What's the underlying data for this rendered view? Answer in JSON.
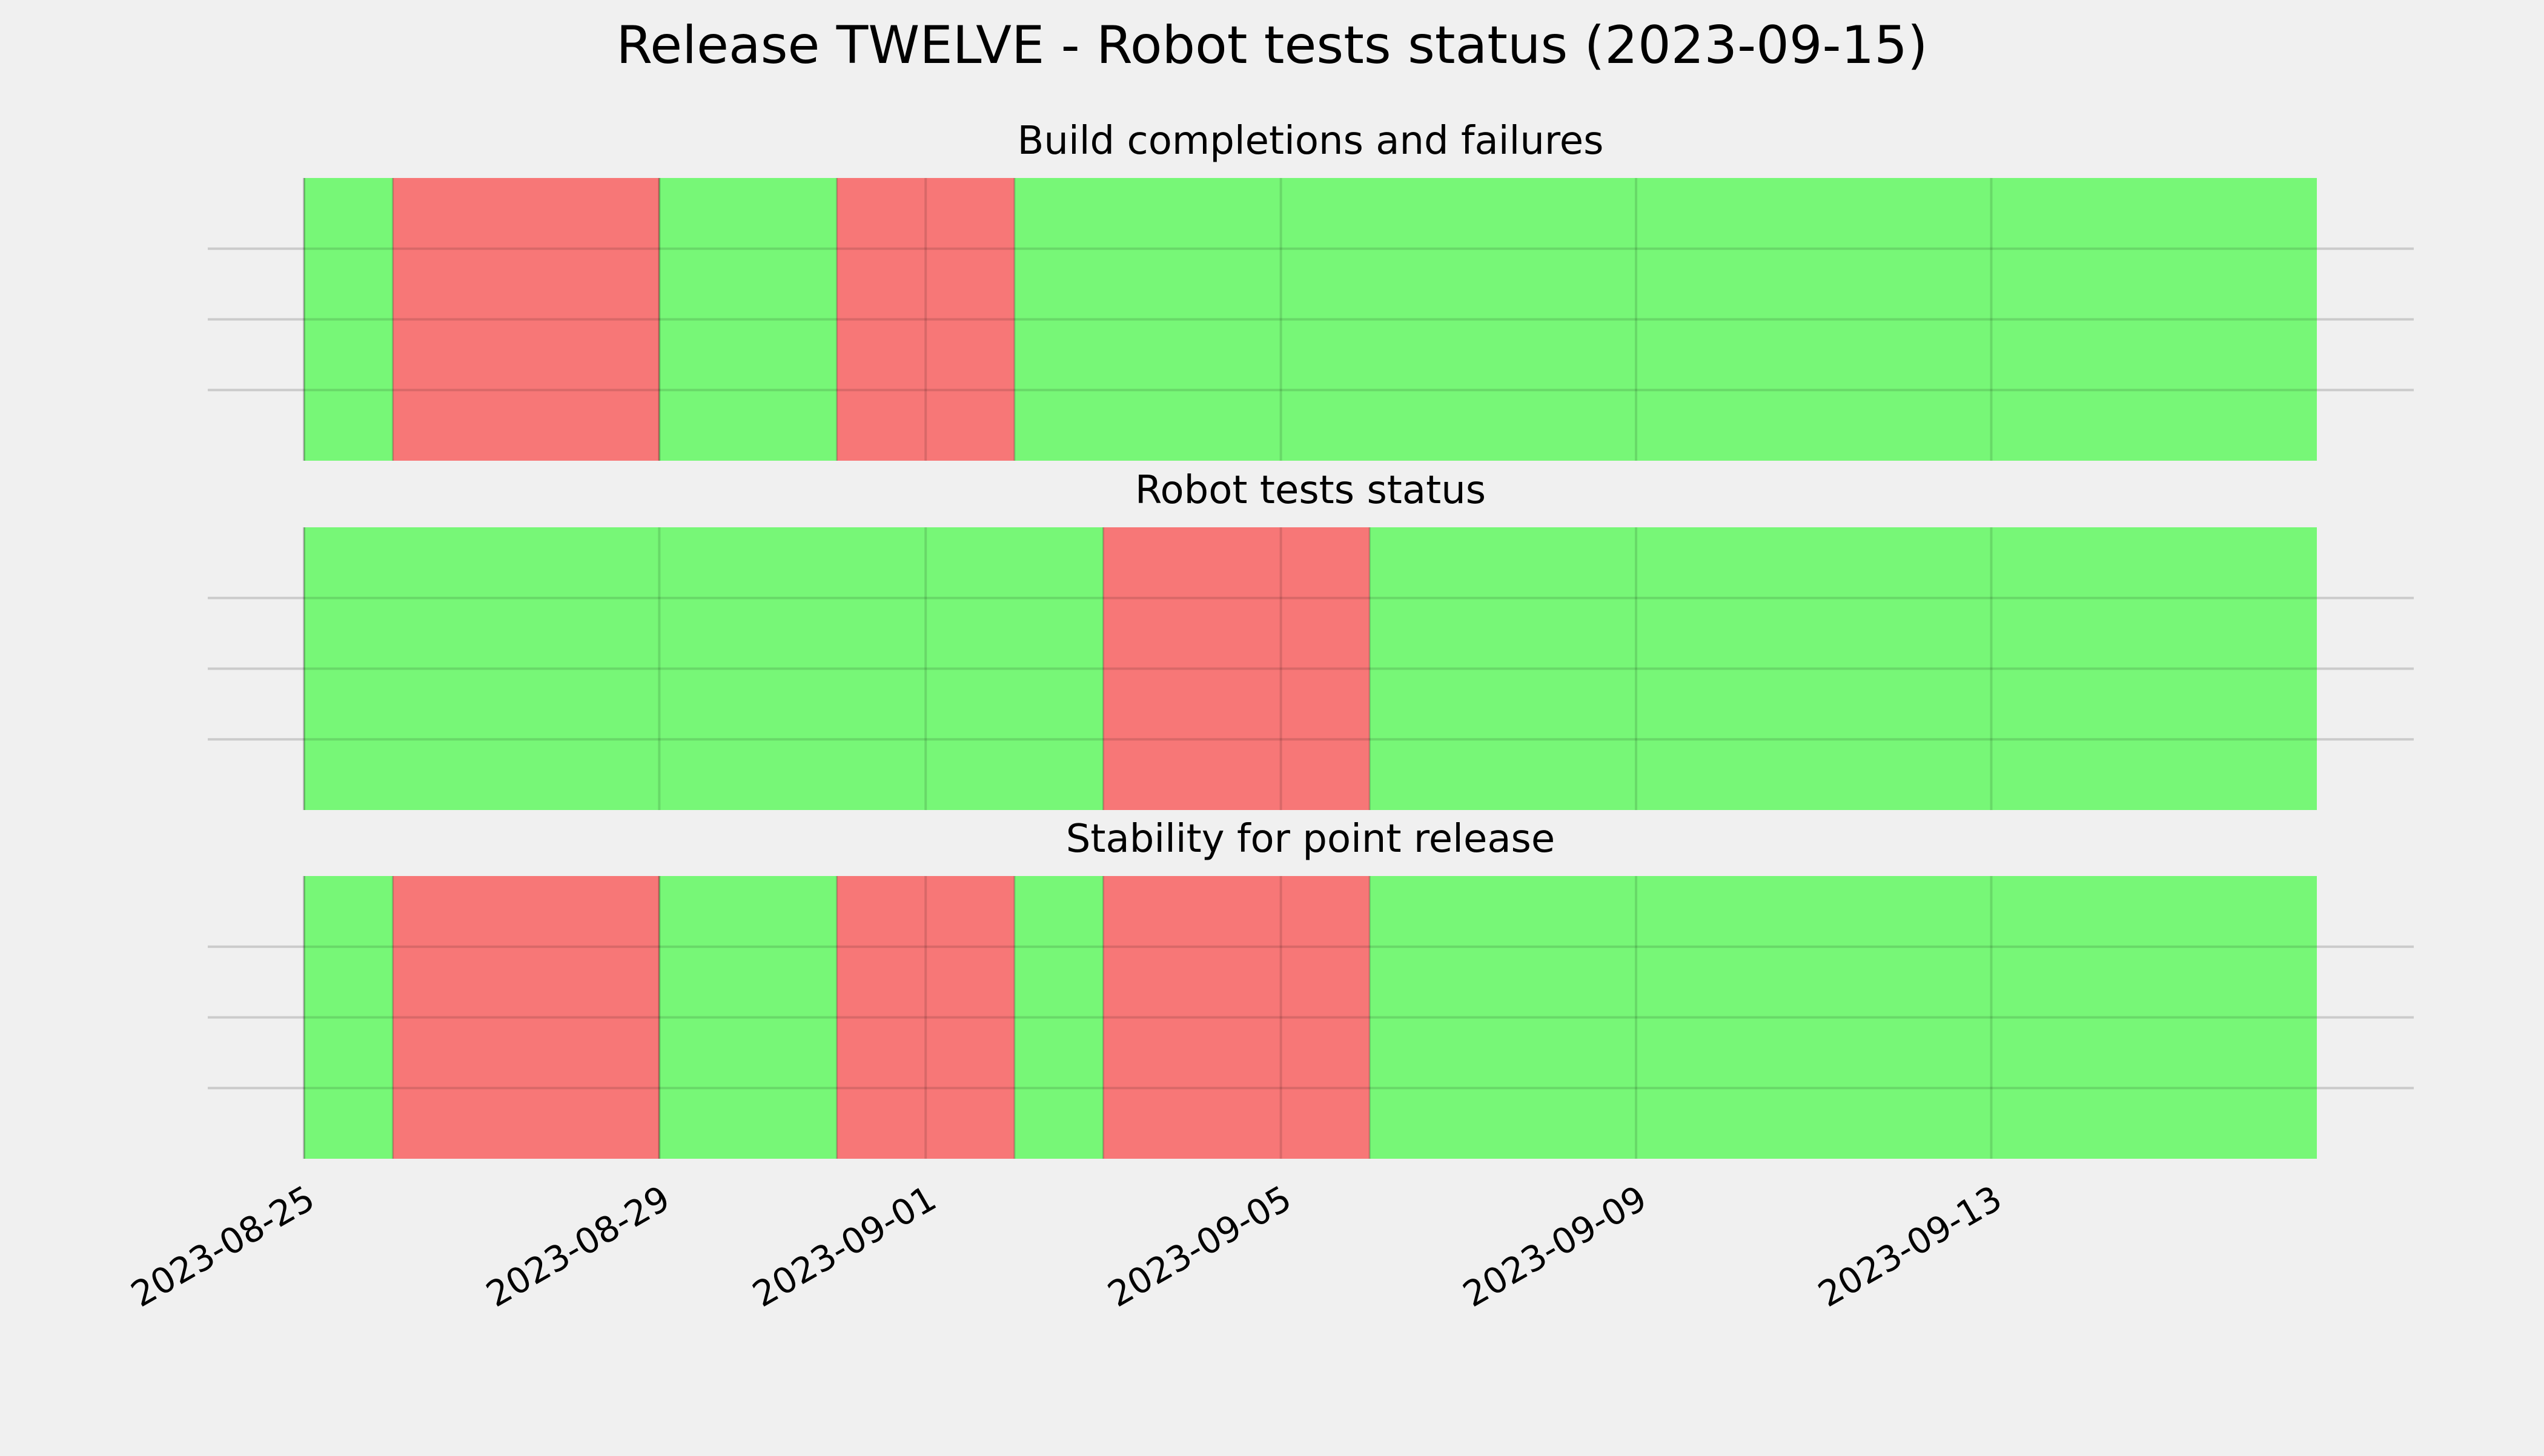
{
  "chart_data": {
    "type": "timeline",
    "title": "Release TWELVE - Robot tests status (2023-09-15)",
    "x_range": [
      "2023-08-25",
      "2023-09-16T16:00"
    ],
    "x_ticks": [
      "2023-08-25",
      "2023-08-29",
      "2023-09-01",
      "2023-09-05",
      "2023-09-09",
      "2023-09-13"
    ],
    "status_colors": {
      "ok": "#77f777",
      "fail": "#f77777"
    },
    "panels": [
      {
        "title": "Build completions and failures",
        "segments": [
          {
            "start": "2023-08-25",
            "end": "2023-08-26",
            "status": "ok"
          },
          {
            "start": "2023-08-26",
            "end": "2023-08-29",
            "status": "fail"
          },
          {
            "start": "2023-08-29",
            "end": "2023-08-31",
            "status": "ok"
          },
          {
            "start": "2023-08-31",
            "end": "2023-09-02",
            "status": "fail"
          },
          {
            "start": "2023-09-02",
            "end": "2023-09-16T16:00",
            "status": "ok"
          }
        ]
      },
      {
        "title": "Robot tests status",
        "segments": [
          {
            "start": "2023-08-25",
            "end": "2023-09-03",
            "status": "ok"
          },
          {
            "start": "2023-09-03",
            "end": "2023-09-06",
            "status": "fail"
          },
          {
            "start": "2023-09-06",
            "end": "2023-09-16T16:00",
            "status": "ok"
          }
        ]
      },
      {
        "title": "Stability for point release",
        "segments": [
          {
            "start": "2023-08-25",
            "end": "2023-08-26",
            "status": "ok"
          },
          {
            "start": "2023-08-26",
            "end": "2023-08-29",
            "status": "fail"
          },
          {
            "start": "2023-08-29",
            "end": "2023-08-31",
            "status": "ok"
          },
          {
            "start": "2023-08-31",
            "end": "2023-09-02",
            "status": "fail"
          },
          {
            "start": "2023-09-02",
            "end": "2023-09-03",
            "status": "ok"
          },
          {
            "start": "2023-09-03",
            "end": "2023-09-06",
            "status": "fail"
          },
          {
            "start": "2023-09-06",
            "end": "2023-09-16T16:00",
            "status": "ok"
          }
        ]
      }
    ],
    "grid": true,
    "y_ticks_visible": false
  }
}
